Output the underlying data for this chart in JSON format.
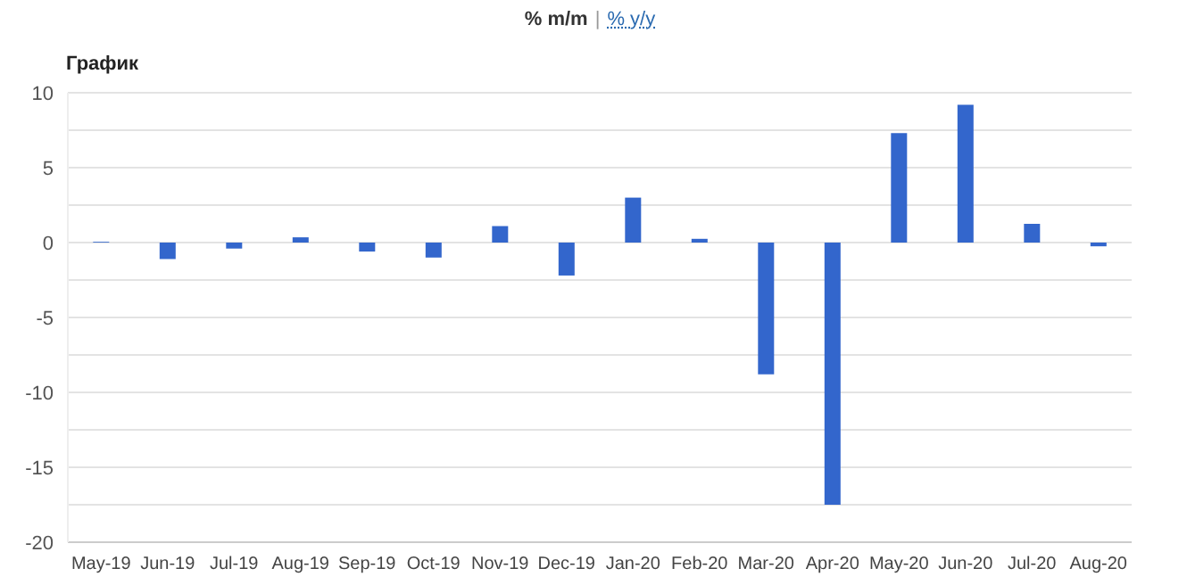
{
  "chart_data": {
    "type": "bar",
    "title": "График",
    "annotations": [
      "% m/m",
      "|",
      "% y/y"
    ],
    "categories": [
      "May-19",
      "Jun-19",
      "Jul-19",
      "Aug-19",
      "Sep-19",
      "Oct-19",
      "Nov-19",
      "Dec-19",
      "Jan-20",
      "Feb-20",
      "Mar-20",
      "Apr-20",
      "May-20",
      "Jun-20",
      "Jul-20",
      "Aug-20"
    ],
    "values": [
      0.05,
      -1.1,
      -0.4,
      0.35,
      -0.6,
      -1.0,
      1.1,
      -2.2,
      3.0,
      0.25,
      -8.8,
      -17.5,
      7.3,
      9.2,
      1.25,
      -0.25
    ],
    "color": "#3366cc",
    "ylim": [
      -20,
      10
    ],
    "yticks": [
      -20,
      {
        "value": -17.5,
        "label": null
      },
      -15,
      {
        "value": -12.5,
        "label": null
      },
      -10,
      {
        "value": -7.5,
        "label": null
      },
      -5,
      {
        "value": -2.5,
        "label": null
      },
      0,
      {
        "value": 2.5,
        "label": null
      },
      5,
      {
        "value": 7.5,
        "label": null
      },
      10
    ],
    "grid": "y"
  }
}
